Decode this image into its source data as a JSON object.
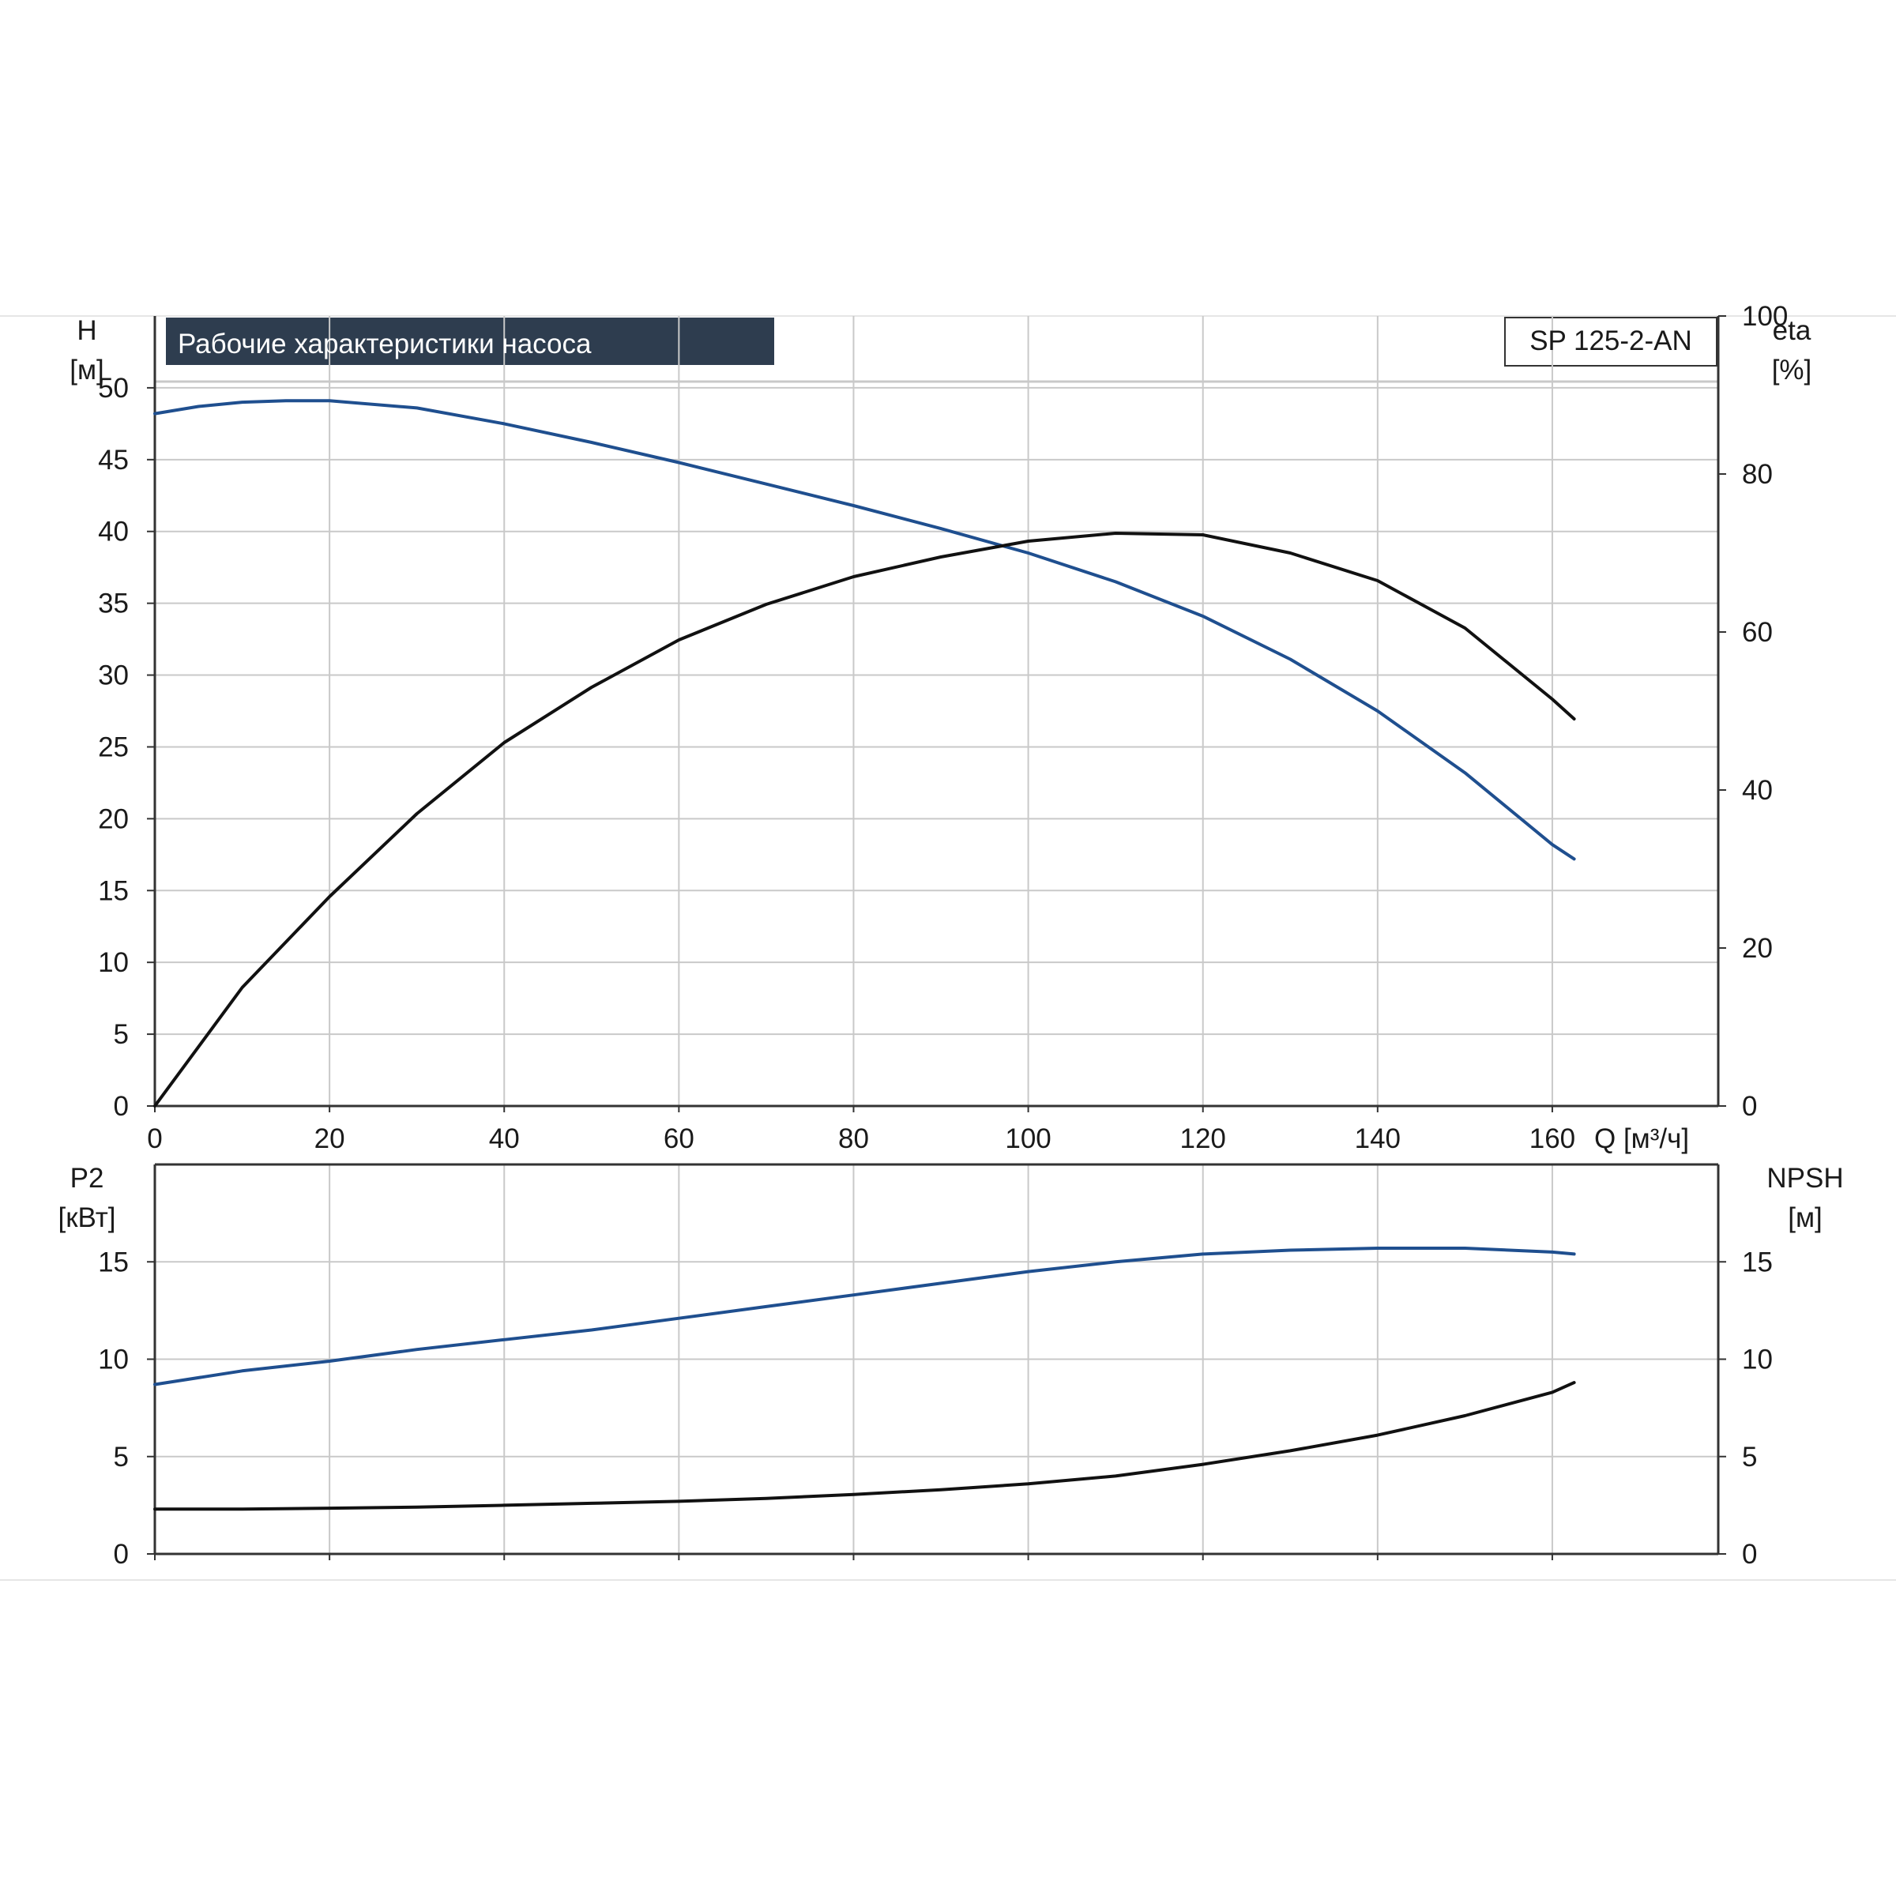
{
  "chart_data": [
    {
      "type": "line",
      "title": "Рабочие характеристики насоса",
      "model": "SP 125-2-AN",
      "xlabel": "Q [м³/ч]",
      "xlim": [
        0,
        179
      ],
      "x_ticks": [
        "0",
        "20",
        "40",
        "60",
        "80",
        "100",
        "120",
        "140",
        "160"
      ],
      "left_axis": {
        "label_top": "H",
        "label_unit": "[м]",
        "ylim": [
          0,
          55
        ],
        "ticks": [
          "0",
          "5",
          "10",
          "15",
          "20",
          "25",
          "30",
          "35",
          "40",
          "45",
          "50"
        ]
      },
      "right_axis": {
        "label_top": "eta",
        "label_unit": "[%]",
        "ylim": [
          0,
          100
        ],
        "ticks": [
          "0",
          "20",
          "40",
          "60",
          "80",
          "100"
        ]
      },
      "grid": true,
      "series": [
        {
          "axis": "left",
          "color": "#1f4f8f",
          "x": [
            0,
            5,
            10,
            15,
            20,
            30,
            40,
            50,
            60,
            70,
            80,
            90,
            100,
            110,
            120,
            130,
            140,
            150,
            160,
            162.5
          ],
          "y": [
            48.2,
            48.7,
            49.0,
            49.1,
            49.1,
            48.6,
            47.5,
            46.2,
            44.8,
            43.3,
            41.8,
            40.2,
            38.5,
            36.5,
            34.1,
            31.1,
            27.5,
            23.2,
            18.2,
            17.2
          ]
        },
        {
          "axis": "right",
          "color": "#111111",
          "x": [
            0,
            10,
            20,
            30,
            40,
            50,
            60,
            70,
            80,
            90,
            100,
            110,
            120,
            130,
            140,
            150,
            160,
            162.5
          ],
          "y": [
            0,
            15,
            26.5,
            37,
            46,
            53,
            59,
            63.5,
            67,
            69.5,
            71.5,
            72.5,
            72.3,
            70,
            66.5,
            60.5,
            51.5,
            49
          ]
        }
      ]
    },
    {
      "type": "line",
      "xlim": [
        0,
        179
      ],
      "left_axis": {
        "label_top": "P2",
        "label_unit": "[кВт]",
        "ylim": [
          0,
          20
        ],
        "ticks": [
          "0",
          "5",
          "10",
          "15"
        ]
      },
      "right_axis": {
        "label_top": "NPSH",
        "label_unit": "[м]",
        "ylim": [
          0,
          20
        ],
        "ticks": [
          "0",
          "5",
          "10",
          "15"
        ]
      },
      "grid": true,
      "series": [
        {
          "axis": "left",
          "color": "#1f4f8f",
          "x": [
            0,
            10,
            20,
            30,
            40,
            50,
            60,
            70,
            80,
            90,
            100,
            110,
            120,
            130,
            140,
            150,
            160,
            162.5
          ],
          "y": [
            8.7,
            9.4,
            9.9,
            10.5,
            11.0,
            11.5,
            12.1,
            12.7,
            13.3,
            13.9,
            14.5,
            15.0,
            15.4,
            15.6,
            15.7,
            15.7,
            15.5,
            15.4
          ]
        },
        {
          "axis": "right",
          "color": "#111111",
          "x": [
            0,
            10,
            20,
            30,
            40,
            50,
            60,
            70,
            80,
            90,
            100,
            110,
            120,
            130,
            140,
            150,
            160,
            162.5
          ],
          "y": [
            2.3,
            2.3,
            2.35,
            2.4,
            2.5,
            2.6,
            2.7,
            2.85,
            3.05,
            3.3,
            3.6,
            4.0,
            4.6,
            5.3,
            6.1,
            7.1,
            8.3,
            8.8
          ]
        }
      ]
    }
  ]
}
